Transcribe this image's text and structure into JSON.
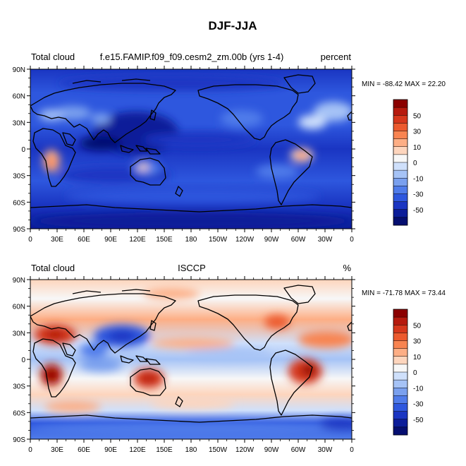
{
  "title": "DJF-JJA",
  "lat_ticks": [
    "90N",
    "60N",
    "30N",
    "0",
    "30S",
    "60S",
    "90S"
  ],
  "lon_ticks": [
    "0",
    "30E",
    "60E",
    "90E",
    "120E",
    "150E",
    "180",
    "150W",
    "120W",
    "90W",
    "60W",
    "30W",
    "0"
  ],
  "colorbar_labels": [
    "50",
    "30",
    "10",
    "0",
    "-10",
    "-30",
    "-50"
  ],
  "colorbar_colors": [
    "#8b0000",
    "#b61a0e",
    "#d6371c",
    "#ec5a2e",
    "#f88451",
    "#fdae85",
    "#fdd5bd",
    "#f7f7f7",
    "#cfe0fb",
    "#a6c3f6",
    "#7aa0ee",
    "#507cea",
    "#2e57de",
    "#1a35c2",
    "#0c1d99",
    "#050e70"
  ],
  "panels": [
    {
      "left_label": "Total cloud",
      "center_label": "f.e15.FAMIP.f09_f09.cesm2_zm.00b (yrs 1-4)",
      "right_label": "percent",
      "stats": "MIN = -88.42 MAX =  22.20"
    },
    {
      "left_label": "Total cloud",
      "center_label": "ISCCP",
      "right_label": "%",
      "stats": "MIN = -71.78 MAX =  73.44"
    }
  ]
}
